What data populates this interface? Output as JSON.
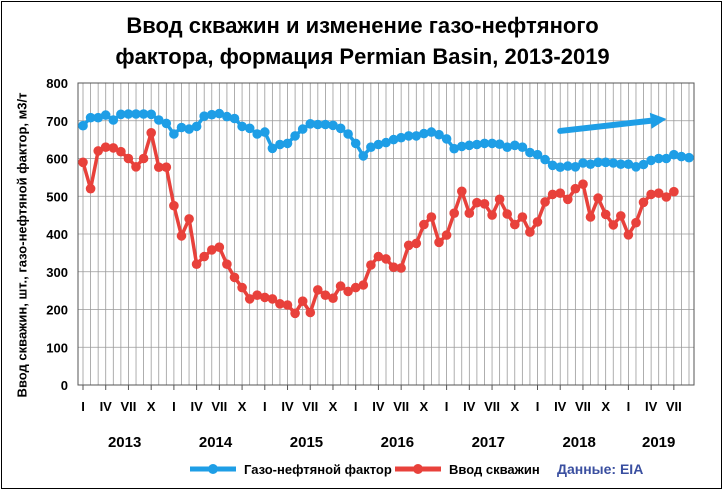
{
  "chart_data": {
    "type": "line",
    "title": "Ввод скважин и изменение газо-нефтяного\nфактора, формация Permian Basin, 2013-2019",
    "ylabel": "Ввод скважин, шт., газо-нефтяной фактор, м3/т",
    "ylim": [
      0,
      800
    ],
    "yticks": [
      "0",
      "100",
      "200",
      "300",
      "400",
      "500",
      "600",
      "700",
      "800"
    ],
    "xtick_labels": [
      "I",
      "IV",
      "VII",
      "X",
      "I",
      "IV",
      "VII",
      "X",
      "I",
      "IV",
      "VII",
      "X",
      "I",
      "IV",
      "VII",
      "X",
      "I",
      "IV",
      "VII",
      "X",
      "I",
      "IV",
      "VII",
      "X",
      "I",
      "IV",
      "VII"
    ],
    "years": [
      "2013",
      "2014",
      "2015",
      "2016",
      "2017",
      "2018",
      "2019"
    ],
    "grid": true,
    "legend_position": "bottom",
    "source": "Данные: EIA",
    "series": [
      {
        "name": "Газо-нефтяной фактор",
        "color": "#1e9ee6",
        "values": [
          687,
          708,
          708,
          715,
          702,
          717,
          718,
          718,
          718,
          717,
          702,
          693,
          665,
          682,
          678,
          685,
          712,
          716,
          719,
          711,
          706,
          685,
          680,
          665,
          670,
          627,
          637,
          640,
          660,
          678,
          692,
          690,
          690,
          688,
          680,
          665,
          640,
          607,
          630,
          637,
          642,
          650,
          655,
          660,
          660,
          666,
          670,
          663,
          652,
          626,
          632,
          635,
          637,
          640,
          640,
          638,
          630,
          635,
          630,
          616,
          610,
          597,
          582,
          577,
          580,
          578,
          588,
          585,
          590,
          590,
          588,
          585,
          585,
          578,
          584,
          595,
          600,
          600,
          610,
          605,
          602
        ]
      },
      {
        "name": "Ввод скважин",
        "color": "#e8413b",
        "values": [
          590,
          520,
          620,
          630,
          628,
          618,
          600,
          578,
          600,
          668,
          577,
          577,
          475,
          395,
          440,
          320,
          340,
          358,
          365,
          320,
          285,
          258,
          228,
          238,
          232,
          228,
          215,
          212,
          190,
          222,
          192,
          252,
          238,
          230,
          262,
          248,
          258,
          265,
          318,
          340,
          334,
          312,
          310,
          370,
          375,
          425,
          445,
          378,
          397,
          455,
          513,
          455,
          483,
          480,
          450,
          492,
          453,
          425,
          445,
          405,
          432,
          485,
          505,
          508,
          492,
          520,
          532,
          445,
          495,
          452,
          424,
          448,
          398,
          430,
          484,
          505,
          508,
          498,
          512
        ]
      }
    ]
  },
  "trend_arrow": {
    "from": 673,
    "to": 700,
    "color": "#1e9ee6"
  }
}
